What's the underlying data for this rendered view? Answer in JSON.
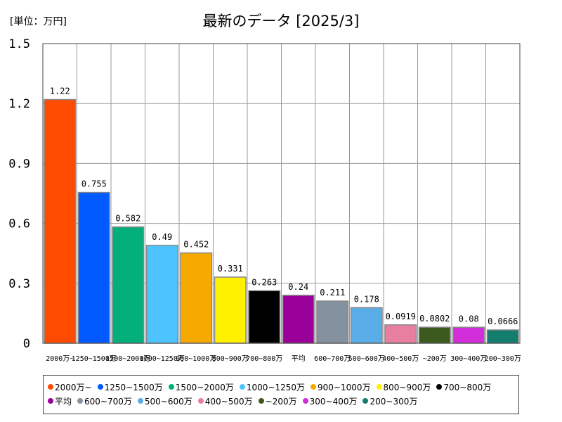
{
  "chart_data": {
    "type": "bar",
    "title": "最新のデータ [2025/3]",
    "unit_label": "[単位：万円]",
    "ylim": [
      0,
      1.5
    ],
    "yticks": [
      "0",
      "0.3",
      "0.6",
      "0.9",
      "1.2",
      "1.5"
    ],
    "grid": true,
    "legend_position": "bottom",
    "categories": [
      "2000万~",
      "1250~1500万",
      "1500~2000万",
      "1000~1250万",
      "900~1000万",
      "800~900万",
      "700~800万",
      "平均",
      "600~700万",
      "500~600万",
      "400~500万",
      "~200万",
      "300~400万",
      "200~300万"
    ],
    "values": [
      1.22,
      0.755,
      0.582,
      0.49,
      0.452,
      0.331,
      0.263,
      0.24,
      0.211,
      0.178,
      0.0919,
      0.0802,
      0.08,
      0.0666
    ],
    "value_labels": [
      "1.22",
      "0.755",
      "0.582",
      "0.49",
      "0.452",
      "0.331",
      "0.263",
      "0.24",
      "0.211",
      "0.178",
      "0.0919",
      "0.0802",
      "0.08",
      "0.0666"
    ],
    "x_tick_labels": [
      "2000万~",
      "1250~1500万",
      "1500~2000万",
      "1000~1250万",
      "900~1000万",
      "800~900万",
      "700~800万",
      "平均",
      "600~700万",
      "500~600万",
      "400~500万",
      "~200万",
      "300~400万",
      "200~300万"
    ],
    "colors": [
      "#ff4b00",
      "#005aff",
      "#03af7a",
      "#4dc4ff",
      "#f6aa00",
      "#fff100",
      "#000000",
      "#990099",
      "#84919e",
      "#5aaee8",
      "#e87ea0",
      "#3c5a1e",
      "#d12ed9",
      "#137d6e"
    ],
    "legend": [
      "2000万~",
      "1250~1500万",
      "1500~2000万",
      "1000~1250万",
      "900~1000万",
      "800~900万",
      "700~800万",
      "平均",
      "600~700万",
      "500~600万",
      "400~500万",
      "~200万",
      "300~400万",
      "200~300万"
    ]
  }
}
